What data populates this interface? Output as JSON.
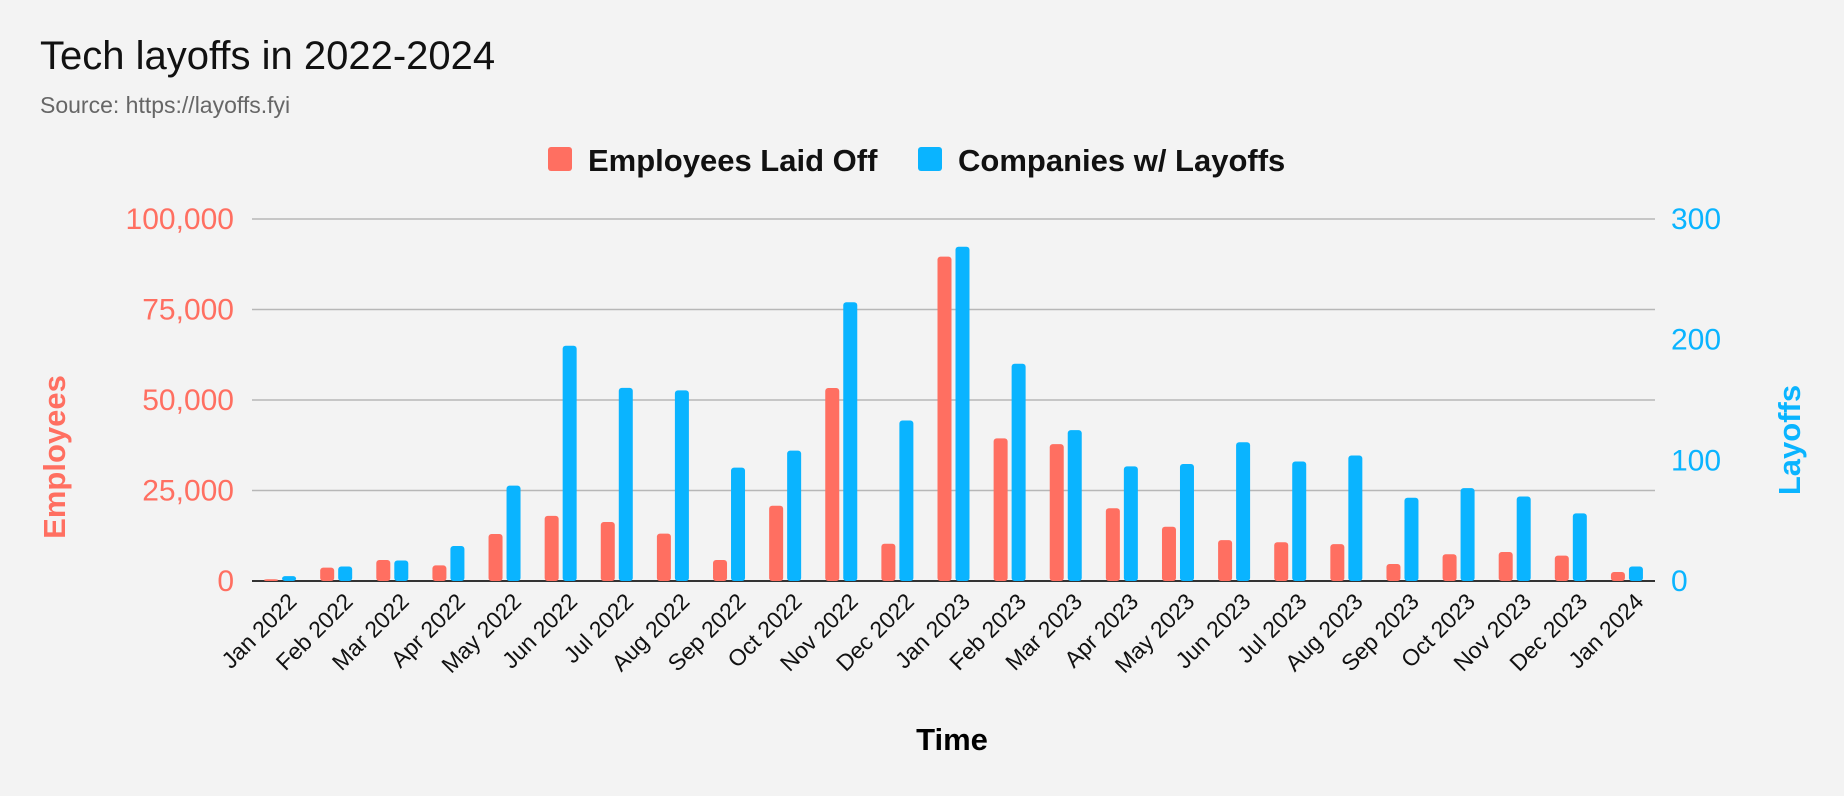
{
  "title": "Tech layoffs in 2022-2024",
  "subtitle": "Source: https://layoffs.fyi",
  "colors": {
    "employees": "#ff6f61",
    "companies": "#0ab4ff",
    "gridline": "#b7b7b7",
    "axis": "#333333"
  },
  "chart_data": {
    "type": "bar",
    "xlabel": "Time",
    "ylabel_left": "Employees",
    "ylabel_right": "Layoffs",
    "legend_placement": "top-center",
    "grid": true,
    "categories": [
      "Jan 2022",
      "Feb 2022",
      "Mar 2022",
      "Apr 2022",
      "May 2022",
      "Jun 2022",
      "Jul 2022",
      "Aug 2022",
      "Sep 2022",
      "Oct 2022",
      "Nov 2022",
      "Dec 2022",
      "Jan 2023",
      "Feb 2023",
      "Mar 2023",
      "Apr 2023",
      "May 2023",
      "Jun 2023",
      "Jul 2023",
      "Aug 2023",
      "Sep 2023",
      "Oct 2023",
      "Nov 2023",
      "Dec 2023",
      "Jan 2024"
    ],
    "series": [
      {
        "name": "Employees Laid Off",
        "axis": "left",
        "values": [
          500,
          3700,
          5800,
          4300,
          13000,
          18000,
          16300,
          13100,
          5800,
          20800,
          53300,
          10300,
          89600,
          39400,
          37800,
          20100,
          15000,
          11300,
          10700,
          10200,
          4700,
          7400,
          8000,
          7000,
          2500
        ]
      },
      {
        "name": "Companies w/ Layoffs",
        "axis": "right",
        "values": [
          4,
          12,
          17,
          29,
          79,
          195,
          160,
          158,
          94,
          108,
          231,
          133,
          277,
          180,
          125,
          95,
          97,
          115,
          99,
          104,
          69,
          77,
          70,
          56,
          12
        ]
      }
    ],
    "ylim_left": [
      0,
      100000
    ],
    "ylim_right": [
      0,
      300
    ],
    "yticks_left": [
      "0",
      "25,000",
      "50,000",
      "75,000",
      "100,000"
    ],
    "yticks_right": [
      "0",
      "100",
      "200",
      "300"
    ]
  }
}
